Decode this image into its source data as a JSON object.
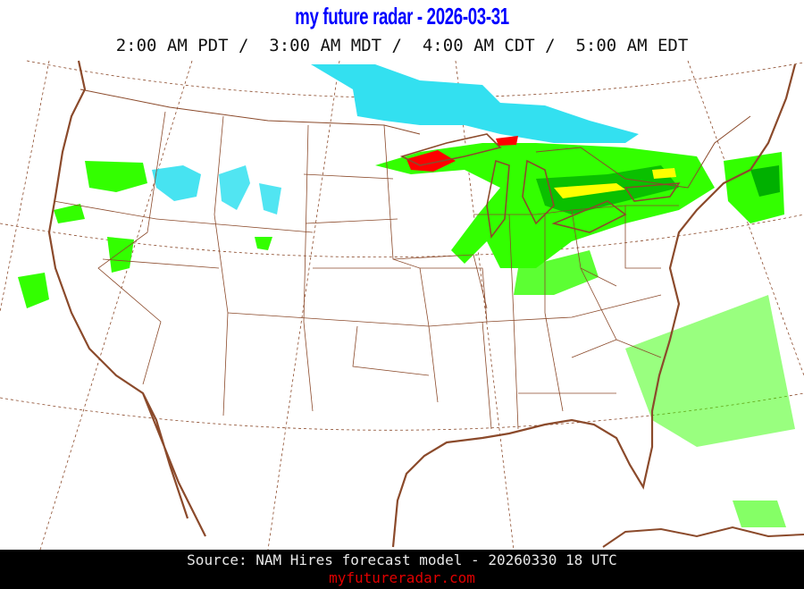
{
  "header": {
    "title": "my future radar - 2026-03-31",
    "times": "2:00 AM PDT /  3:00 AM MDT /  4:00 AM CDT /  5:00 AM EDT"
  },
  "map": {
    "region": "Continental United States",
    "layer": "forecast radar reflectivity",
    "colors": {
      "boundary": "#8b4a2b",
      "snow": "#33e0f0",
      "light_rain": "#33ff00",
      "moderate_rain": "#00b000",
      "heavy_rain": "#ffff00",
      "intense": "#ff0000"
    }
  },
  "footer": {
    "source": "Source: NAM Hires forecast model - 20260330 18 UTC",
    "site": "myfutureradar.com"
  }
}
